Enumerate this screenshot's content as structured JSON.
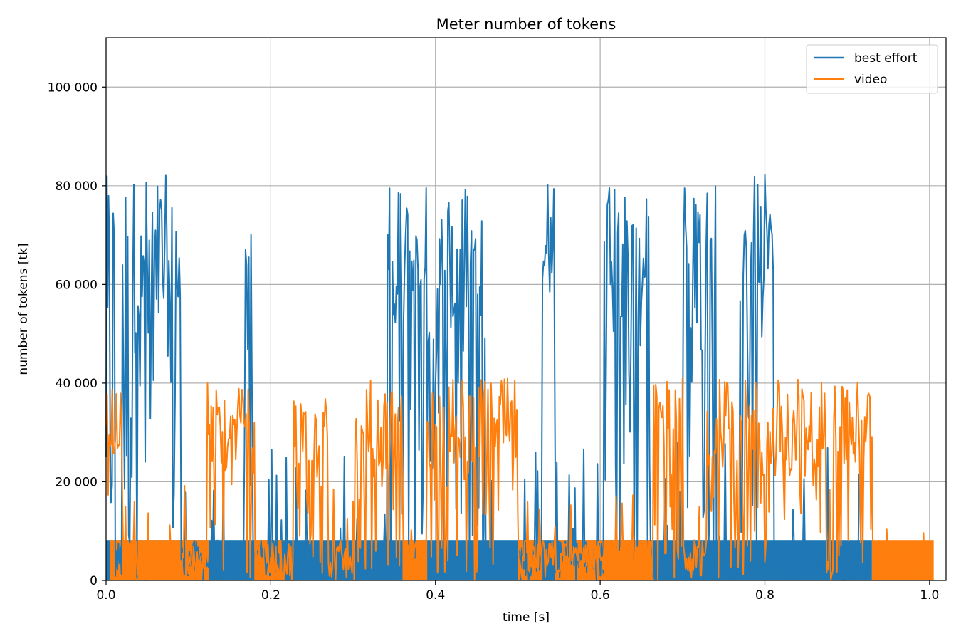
{
  "chart_data": {
    "type": "line",
    "title": "Meter number of tokens",
    "xlabel": "time [s]",
    "ylabel": "number of tokens [tk]",
    "xlim": [
      0.0,
      1.02
    ],
    "ylim": [
      0,
      110000
    ],
    "x_ticks": [
      0.0,
      0.2,
      0.4,
      0.6,
      0.8,
      1.0
    ],
    "x_tick_labels": [
      "0.0",
      "0.2",
      "0.4",
      "0.6",
      "0.8",
      "1.0"
    ],
    "y_ticks": [
      0,
      20000,
      40000,
      60000,
      80000,
      100000
    ],
    "y_tick_labels": [
      "0",
      "20 000",
      "40 000",
      "60 000",
      "80 000",
      "100 000"
    ],
    "grid": true,
    "legend_position": "top-right",
    "series": [
      {
        "name": "best effort",
        "color": "#1f77b4",
        "cap": 82300,
        "base_band": 8200,
        "peak_segments": [
          [
            0.0,
            0.01
          ],
          [
            0.02,
            0.09
          ],
          [
            0.168,
            0.178
          ],
          [
            0.342,
            0.46
          ],
          [
            0.53,
            0.545
          ],
          [
            0.605,
            0.66
          ],
          [
            0.7,
            0.74
          ],
          [
            0.77,
            0.81
          ]
        ],
        "x": [
          0.0,
          0.003,
          0.006,
          0.01,
          0.015,
          0.02,
          0.025,
          0.03,
          0.035,
          0.04,
          0.045,
          0.05,
          0.055,
          0.06,
          0.065,
          0.07,
          0.075,
          0.08,
          0.085,
          0.09,
          0.1,
          0.12,
          0.14,
          0.16,
          0.168,
          0.172,
          0.176,
          0.18,
          0.2,
          0.22,
          0.25,
          0.3,
          0.342,
          0.35,
          0.36,
          0.37,
          0.38,
          0.39,
          0.4,
          0.41,
          0.42,
          0.43,
          0.44,
          0.45,
          0.46,
          0.48,
          0.5,
          0.53,
          0.535,
          0.54,
          0.545,
          0.56,
          0.58,
          0.605,
          0.615,
          0.625,
          0.635,
          0.645,
          0.655,
          0.66,
          0.68,
          0.7,
          0.71,
          0.72,
          0.73,
          0.74,
          0.76,
          0.77,
          0.78,
          0.79,
          0.8,
          0.81,
          0.85,
          0.9,
          0.93
        ],
        "y": [
          82300,
          70000,
          55000,
          20000,
          5000,
          40000,
          82300,
          70000,
          82300,
          60000,
          82300,
          55000,
          82300,
          45000,
          82300,
          65000,
          82300,
          40000,
          82300,
          60000,
          18000,
          8200,
          12000,
          9000,
          82300,
          50000,
          82300,
          20000,
          8200,
          30000,
          8200,
          8200,
          82300,
          60000,
          82300,
          40000,
          82300,
          55000,
          82300,
          45000,
          82300,
          50000,
          82300,
          60000,
          82300,
          15000,
          8200,
          82300,
          60000,
          82300,
          40000,
          15000,
          20000,
          82300,
          70000,
          82300,
          55000,
          82300,
          60000,
          82300,
          20000,
          65000,
          82300,
          70000,
          82300,
          45000,
          10000,
          82300,
          30000,
          82300,
          50000,
          82300,
          8200,
          8200,
          8200
        ]
      },
      {
        "name": "video",
        "color": "#ff7f0e",
        "cap": 41100,
        "base_band": 8200,
        "dense_segments": [
          [
            0.0,
            0.02
          ],
          [
            0.122,
            0.18
          ],
          [
            0.228,
            0.27
          ],
          [
            0.3,
            0.36
          ],
          [
            0.39,
            0.5
          ],
          [
            0.665,
            0.7
          ],
          [
            0.73,
            0.93
          ]
        ],
        "x": [
          0.0,
          0.005,
          0.01,
          0.015,
          0.02,
          0.05,
          0.1,
          0.122,
          0.13,
          0.14,
          0.15,
          0.16,
          0.17,
          0.18,
          0.2,
          0.228,
          0.24,
          0.25,
          0.26,
          0.27,
          0.28,
          0.3,
          0.31,
          0.32,
          0.33,
          0.34,
          0.35,
          0.36,
          0.38,
          0.39,
          0.4,
          0.41,
          0.42,
          0.43,
          0.44,
          0.45,
          0.46,
          0.47,
          0.48,
          0.49,
          0.5,
          0.55,
          0.6,
          0.665,
          0.67,
          0.68,
          0.69,
          0.7,
          0.73,
          0.74,
          0.75,
          0.76,
          0.77,
          0.78,
          0.79,
          0.8,
          0.81,
          0.82,
          0.83,
          0.84,
          0.85,
          0.86,
          0.87,
          0.88,
          0.89,
          0.9,
          0.91,
          0.92,
          0.93,
          0.96,
          1.0,
          1.005
        ],
        "y": [
          41100,
          35000,
          30000,
          20000,
          8200,
          8200,
          8200,
          30000,
          41100,
          25000,
          41100,
          30000,
          41100,
          10000,
          8200,
          35000,
          41100,
          25000,
          41100,
          30000,
          15000,
          35000,
          41100,
          20000,
          41100,
          30000,
          41100,
          25000,
          10000,
          30000,
          41100,
          20000,
          41100,
          30000,
          41100,
          25000,
          41100,
          15000,
          41100,
          20000,
          8200,
          8200,
          8200,
          41100,
          25000,
          41100,
          20000,
          8200,
          41100,
          30000,
          41100,
          25000,
          41100,
          30000,
          41100,
          20000,
          41100,
          25000,
          41100,
          30000,
          41100,
          20000,
          41100,
          35000,
          41100,
          30000,
          41100,
          35000,
          20000,
          10000,
          8200,
          8200
        ]
      }
    ]
  }
}
